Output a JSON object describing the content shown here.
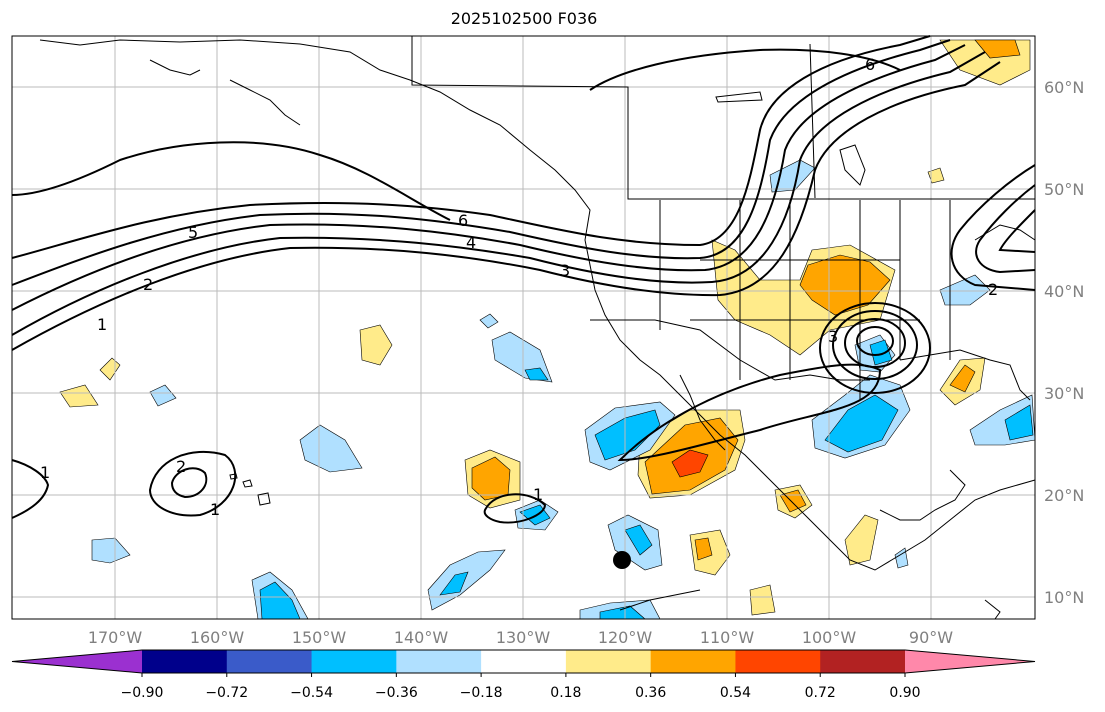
{
  "title": "2025102500 F036",
  "lon_ticks": [
    "170°W",
    "160°W",
    "150°W",
    "140°W",
    "130°W",
    "120°W",
    "110°W",
    "100°W",
    "90°W"
  ],
  "lat_ticks": [
    "60°N",
    "50°N",
    "40°N",
    "30°N",
    "20°N",
    "10°N"
  ],
  "colorbar": {
    "ticks": [
      "−0.90",
      "−0.72",
      "−0.54",
      "−0.36",
      "−0.18",
      "0.18",
      "0.36",
      "0.54",
      "0.72",
      "0.90"
    ],
    "colors": [
      "#9b30d0",
      "#00008b",
      "#3a5bc9",
      "#00bfff",
      "#b0e0ff",
      "#ffffff",
      "#ffeb8a",
      "#ffa500",
      "#ff4500",
      "#b22222",
      "#ff88aa"
    ]
  },
  "contour_labels": [
    "6",
    "5",
    "4",
    "3",
    "2",
    "1",
    "6",
    "2",
    "1",
    "1",
    "2",
    "1",
    "3"
  ],
  "colors": {
    "land": "#ffffff",
    "coast": "#000000",
    "grid": "#bbbbbb",
    "label": "#808080"
  }
}
